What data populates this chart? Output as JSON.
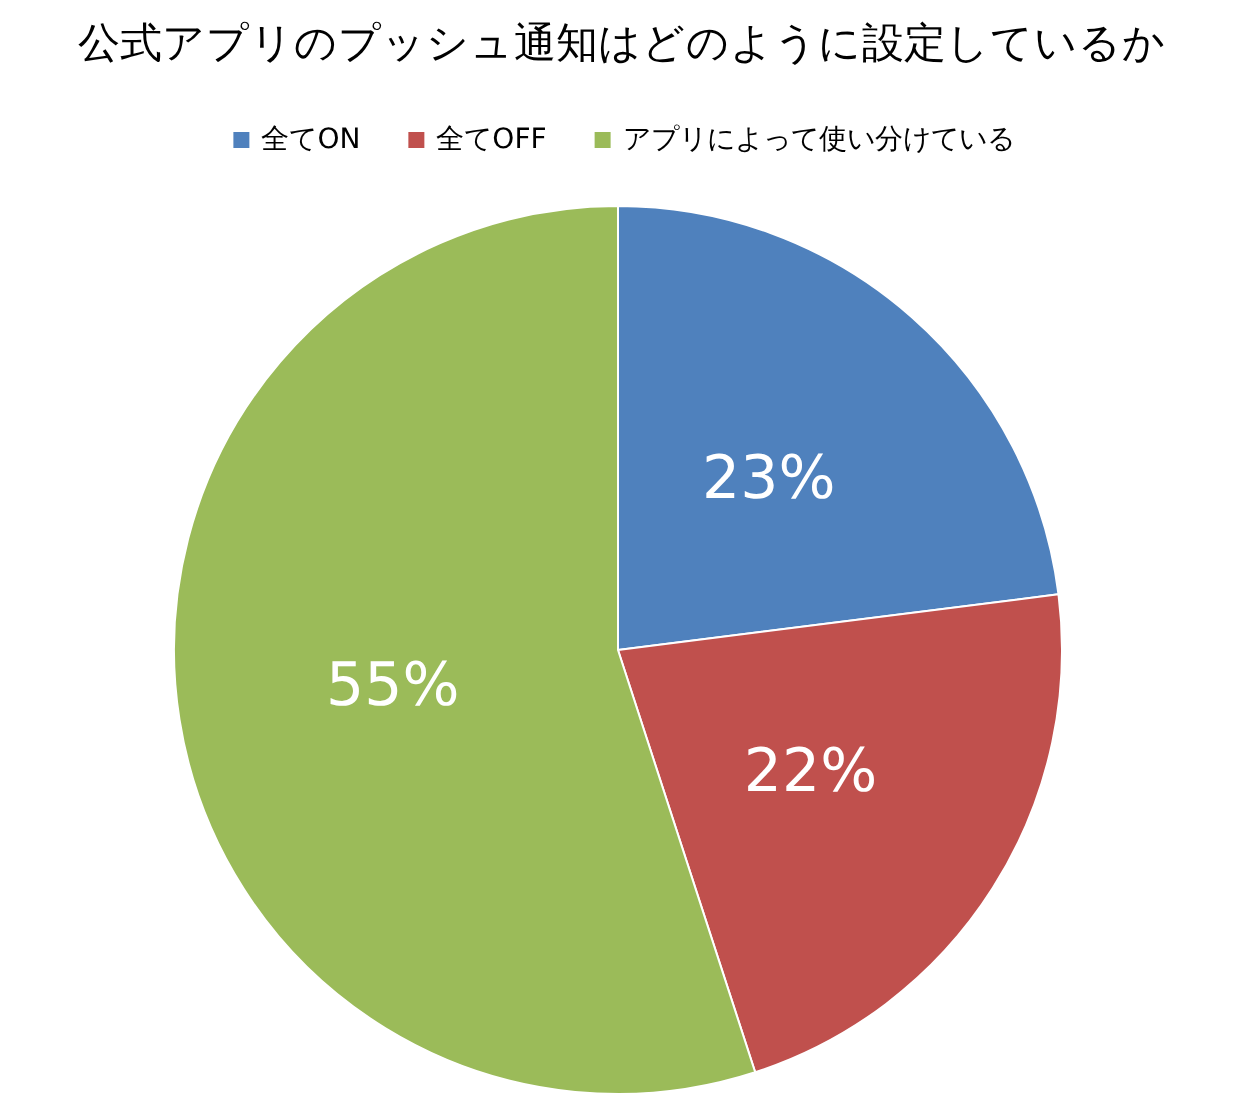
{
  "chart_data": {
    "type": "pie",
    "title": "公式アプリのプッシュ通知はどのように設定しているか",
    "categories": [
      "全てON",
      "全てOFF",
      "アプリによって使い分けている"
    ],
    "values": [
      23,
      22,
      55
    ],
    "colors": [
      "#4f81bd",
      "#c0504d",
      "#9bbb59"
    ],
    "value_labels": [
      "23%",
      "22%",
      "55%"
    ],
    "legend": "top"
  }
}
